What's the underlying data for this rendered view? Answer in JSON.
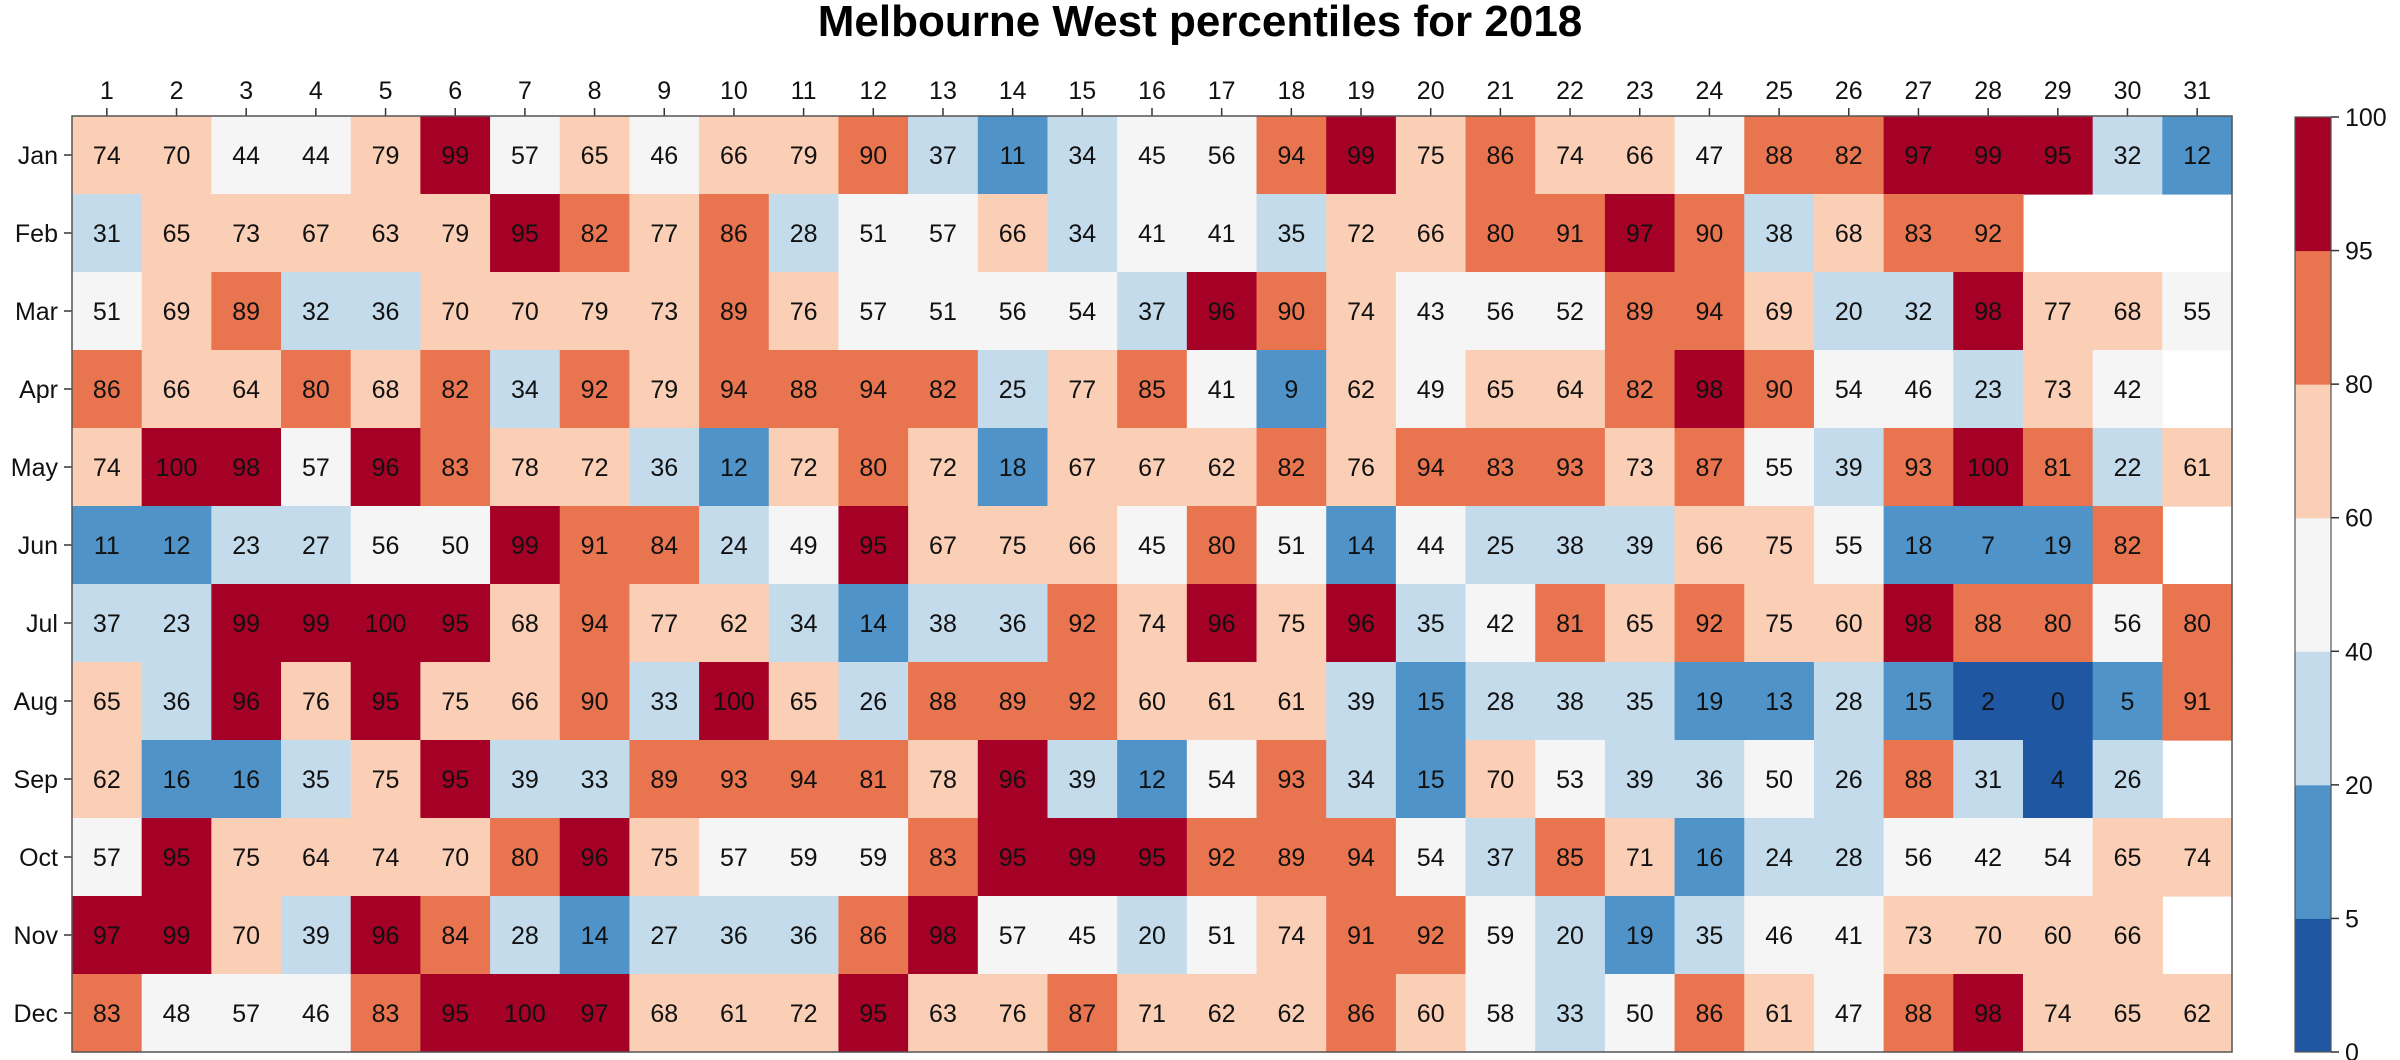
{
  "chart_data": {
    "type": "heatmap",
    "title": "Melbourne West percentiles for 2018",
    "x_categories": [
      "1",
      "2",
      "3",
      "4",
      "5",
      "6",
      "7",
      "8",
      "9",
      "10",
      "11",
      "12",
      "13",
      "14",
      "15",
      "16",
      "17",
      "18",
      "19",
      "20",
      "21",
      "22",
      "23",
      "24",
      "25",
      "26",
      "27",
      "28",
      "29",
      "30",
      "31"
    ],
    "y_categories": [
      "Jan",
      "Feb",
      "Mar",
      "Apr",
      "May",
      "Jun",
      "Jul",
      "Aug",
      "Sep",
      "Oct",
      "Nov",
      "Dec"
    ],
    "values": [
      [
        74,
        70,
        44,
        44,
        79,
        99,
        57,
        65,
        46,
        66,
        79,
        90,
        37,
        11,
        34,
        45,
        56,
        94,
        99,
        75,
        86,
        74,
        66,
        47,
        88,
        82,
        97,
        99,
        95,
        32,
        12
      ],
      [
        31,
        65,
        73,
        67,
        63,
        79,
        95,
        82,
        77,
        86,
        28,
        51,
        57,
        66,
        34,
        41,
        41,
        35,
        72,
        66,
        80,
        91,
        97,
        90,
        38,
        68,
        83,
        92,
        null,
        null,
        null
      ],
      [
        51,
        69,
        89,
        32,
        36,
        70,
        70,
        79,
        73,
        89,
        76,
        57,
        51,
        56,
        54,
        37,
        96,
        90,
        74,
        43,
        56,
        52,
        89,
        94,
        69,
        20,
        32,
        98,
        77,
        68,
        55
      ],
      [
        86,
        66,
        64,
        80,
        68,
        82,
        34,
        92,
        79,
        94,
        88,
        94,
        82,
        25,
        77,
        85,
        41,
        9,
        62,
        49,
        65,
        64,
        82,
        98,
        90,
        54,
        46,
        23,
        73,
        42,
        null
      ],
      [
        74,
        100,
        98,
        57,
        96,
        83,
        78,
        72,
        36,
        12,
        72,
        80,
        72,
        18,
        67,
        67,
        62,
        82,
        76,
        94,
        83,
        93,
        73,
        87,
        55,
        39,
        93,
        100,
        81,
        22,
        61
      ],
      [
        11,
        12,
        23,
        27,
        56,
        50,
        99,
        91,
        84,
        24,
        49,
        95,
        67,
        75,
        66,
        45,
        80,
        51,
        14,
        44,
        25,
        38,
        39,
        66,
        75,
        55,
        18,
        7,
        19,
        82,
        null
      ],
      [
        37,
        23,
        99,
        99,
        100,
        95,
        68,
        94,
        77,
        62,
        34,
        14,
        38,
        36,
        92,
        74,
        96,
        75,
        96,
        35,
        42,
        81,
        65,
        92,
        75,
        60,
        98,
        88,
        80,
        56,
        80
      ],
      [
        65,
        36,
        96,
        76,
        95,
        75,
        66,
        90,
        33,
        100,
        65,
        26,
        88,
        89,
        92,
        60,
        61,
        61,
        39,
        15,
        28,
        38,
        35,
        19,
        13,
        28,
        15,
        2,
        0,
        5,
        91
      ],
      [
        62,
        16,
        16,
        35,
        75,
        95,
        39,
        33,
        89,
        93,
        94,
        81,
        78,
        96,
        39,
        12,
        54,
        93,
        34,
        15,
        70,
        53,
        39,
        36,
        50,
        26,
        88,
        31,
        4,
        26,
        null
      ],
      [
        57,
        95,
        75,
        64,
        74,
        70,
        80,
        96,
        75,
        57,
        59,
        59,
        83,
        95,
        99,
        95,
        92,
        89,
        94,
        54,
        37,
        85,
        71,
        16,
        24,
        28,
        56,
        42,
        54,
        65,
        74
      ],
      [
        97,
        99,
        70,
        39,
        96,
        84,
        28,
        14,
        27,
        36,
        36,
        86,
        98,
        57,
        45,
        20,
        51,
        74,
        91,
        92,
        59,
        20,
        19,
        35,
        46,
        41,
        73,
        70,
        60,
        66,
        null
      ],
      [
        83,
        48,
        57,
        46,
        83,
        95,
        100,
        97,
        68,
        61,
        72,
        95,
        63,
        76,
        87,
        71,
        62,
        62,
        86,
        60,
        58,
        33,
        50,
        86,
        61,
        47,
        88,
        98,
        74,
        65,
        62
      ]
    ],
    "colorbar": {
      "boundaries": [
        0,
        5,
        20,
        40,
        60,
        80,
        95,
        100
      ],
      "colors": [
        "#1f57a3",
        "#4f93c8",
        "#c4dbec",
        "#f5f5f5",
        "#fbcfb6",
        "#e8754f",
        "#a50026"
      ],
      "tick_labels": [
        "0",
        "5",
        "20",
        "40",
        "60",
        "80",
        "95",
        "100"
      ]
    },
    "range": [
      0,
      100
    ]
  }
}
